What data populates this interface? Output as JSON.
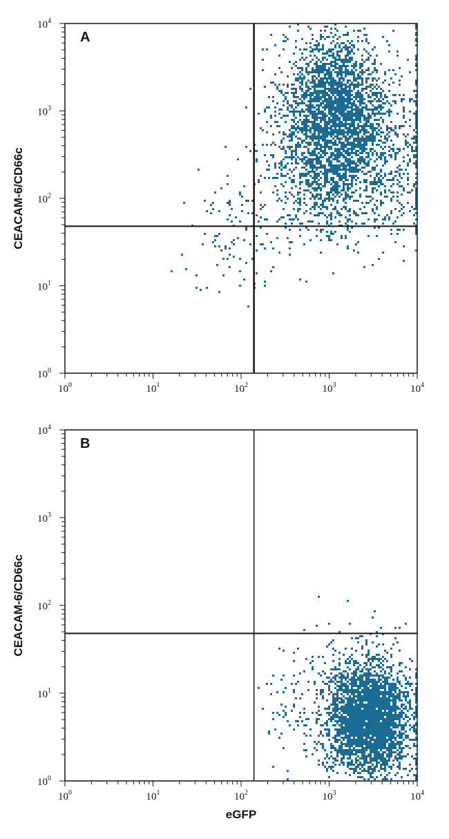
{
  "chart_data": [
    {
      "type": "scatter",
      "panel_label": "A",
      "xlabel": "",
      "ylabel": "CEACAM-6/CD66c",
      "xscale": "log",
      "yscale": "log",
      "xlim": [
        1,
        10000
      ],
      "ylim": [
        1,
        10000
      ],
      "x_ticks": [
        1,
        10,
        100,
        1000,
        10000
      ],
      "y_ticks": [
        1,
        10,
        100,
        1000,
        10000
      ],
      "x_tick_labels": [
        {
          "base": "10",
          "exp": "0"
        },
        {
          "base": "10",
          "exp": "1"
        },
        {
          "base": "10",
          "exp": "2"
        },
        {
          "base": "10",
          "exp": "3"
        },
        {
          "base": "10",
          "exp": "4"
        }
      ],
      "y_tick_labels": [
        {
          "base": "10",
          "exp": "0"
        },
        {
          "base": "10",
          "exp": "1"
        },
        {
          "base": "10",
          "exp": "2"
        },
        {
          "base": "10",
          "exp": "3"
        },
        {
          "base": "10",
          "exp": "4"
        }
      ],
      "quadrant_gate": {
        "x": 140,
        "y": 48
      },
      "point_color": "#1a6b94",
      "populations": [
        {
          "log_cx": 3.05,
          "log_cy": 3.0,
          "log_sx": 0.3,
          "log_sy": 0.45,
          "count": 2600
        },
        {
          "log_cx": 3.4,
          "log_cy": 2.4,
          "log_sx": 0.45,
          "log_sy": 0.45,
          "count": 800
        },
        {
          "log_cx": 2.8,
          "log_cy": 2.2,
          "log_sx": 0.3,
          "log_sy": 0.3,
          "count": 300
        },
        {
          "log_cx": 2.0,
          "log_cy": 1.6,
          "log_sx": 0.3,
          "log_sy": 0.35,
          "count": 110
        }
      ],
      "edge_pileup": {
        "log_x": 4.0,
        "log_y_min": 1.6,
        "log_y_max": 4.0,
        "count": 260
      }
    },
    {
      "type": "scatter",
      "panel_label": "B",
      "xlabel": "eGFP",
      "ylabel": "CEACAM-6/CD66c",
      "xscale": "log",
      "yscale": "log",
      "xlim": [
        1,
        10000
      ],
      "ylim": [
        1,
        10000
      ],
      "x_ticks": [
        1,
        10,
        100,
        1000,
        10000
      ],
      "y_ticks": [
        1,
        10,
        100,
        1000,
        10000
      ],
      "x_tick_labels": [
        {
          "base": "10",
          "exp": "0"
        },
        {
          "base": "10",
          "exp": "1"
        },
        {
          "base": "10",
          "exp": "2"
        },
        {
          "base": "10",
          "exp": "3"
        },
        {
          "base": "10",
          "exp": "4"
        }
      ],
      "y_tick_labels": [
        {
          "base": "10",
          "exp": "0"
        },
        {
          "base": "10",
          "exp": "1"
        },
        {
          "base": "10",
          "exp": "2"
        },
        {
          "base": "10",
          "exp": "3"
        },
        {
          "base": "10",
          "exp": "4"
        }
      ],
      "quadrant_gate": {
        "x": 140,
        "y": 48
      },
      "point_color": "#1a6b94",
      "populations": [
        {
          "log_cx": 3.45,
          "log_cy": 0.7,
          "log_sx": 0.22,
          "log_sy": 0.3,
          "count": 2800
        },
        {
          "log_cx": 3.3,
          "log_cy": 0.9,
          "log_sx": 0.35,
          "log_sy": 0.4,
          "count": 500
        },
        {
          "log_cx": 2.6,
          "log_cy": 0.8,
          "log_sx": 0.2,
          "log_sy": 0.3,
          "count": 60
        }
      ],
      "edge_pileup": {
        "log_x": 4.0,
        "log_y_min": 0.0,
        "log_y_max": 1.3,
        "count": 90
      }
    }
  ]
}
